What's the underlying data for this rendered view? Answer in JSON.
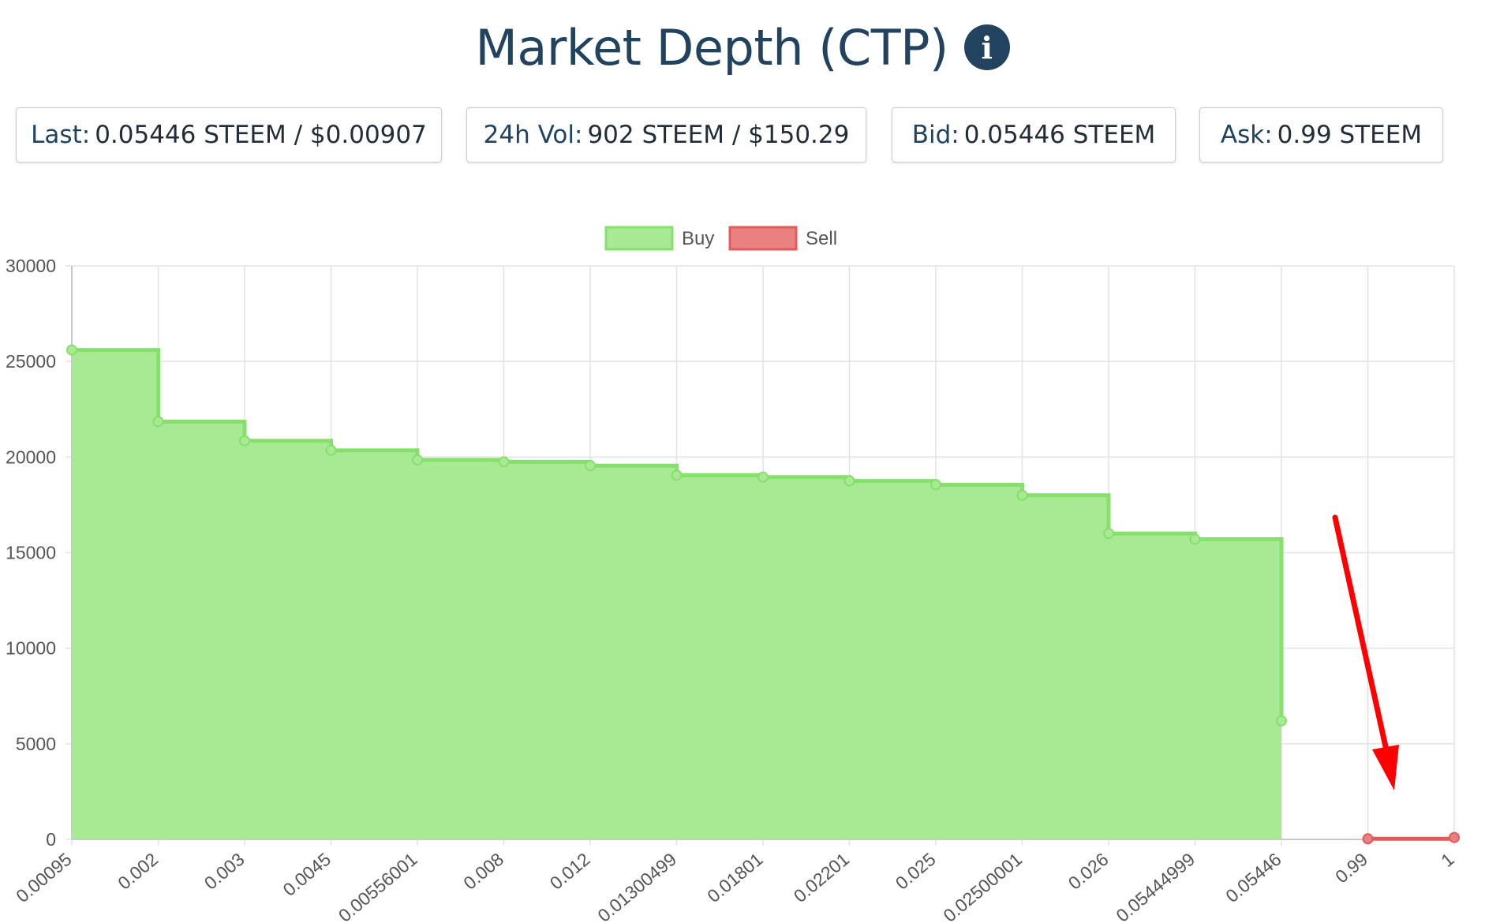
{
  "header": {
    "title": "Market Depth (CTP)",
    "info_icon": "info-icon"
  },
  "stats": {
    "last_label": "Last:",
    "last_value": "0.05446 STEEM / $0.00907",
    "vol_label": "24h Vol:",
    "vol_value": "902 STEEM / $150.29",
    "bid_label": "Bid:",
    "bid_value": "0.05446 STEEM",
    "ask_label": "Ask:",
    "ask_value": "0.99 STEEM"
  },
  "colors": {
    "buy_fill": "#a8ea94",
    "buy_line": "#86e06c",
    "sell_fill": "#e98181",
    "sell_line": "#e25a5a",
    "annotation_arrow": "#ff0000",
    "grid": "#e3e3e3"
  },
  "chart_data": {
    "type": "area",
    "stepped": true,
    "title": "",
    "xlabel": "",
    "ylabel": "",
    "categories": [
      "0.00095",
      "0.002",
      "0.003",
      "0.0045",
      "0.00556001",
      "0.008",
      "0.012",
      "0.01300499",
      "0.01801",
      "0.02201",
      "0.025",
      "0.02500001",
      "0.026",
      "0.05444999",
      "0.05446",
      "0.99",
      "1"
    ],
    "series": [
      {
        "name": "Buy",
        "values": [
          25600,
          21850,
          20850,
          20350,
          19850,
          19750,
          19550,
          19050,
          18950,
          18750,
          18550,
          18000,
          16000,
          15700,
          6200,
          null,
          null
        ]
      },
      {
        "name": "Sell",
        "values": [
          null,
          null,
          null,
          null,
          null,
          null,
          null,
          null,
          null,
          null,
          null,
          null,
          null,
          null,
          null,
          30,
          100
        ]
      }
    ],
    "yticks": [
      "0",
      "5000",
      "10000",
      "15000",
      "20000",
      "25000",
      "30000"
    ],
    "ylim": [
      0,
      30000
    ],
    "grid": true,
    "legend_position": "top-center",
    "annotation": "red arrow pointing to the Sell series"
  }
}
